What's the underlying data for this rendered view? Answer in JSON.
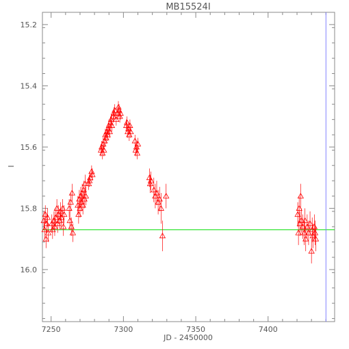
{
  "chart_data": {
    "type": "scatter",
    "title": "MB15524I",
    "xlabel": "JD - 2450000",
    "ylabel": "I",
    "xlim": [
      7244,
      7446
    ],
    "ylim": [
      16.17,
      15.16
    ],
    "y_inverted": true,
    "xticks": [
      7250,
      7300,
      7350,
      7400
    ],
    "yticks": [
      15.2,
      15.4,
      15.6,
      15.8,
      16.0
    ],
    "ytick_labels": [
      "15.2",
      "15.4",
      "15.6",
      "15.8",
      "16.0"
    ],
    "baseline": 15.87,
    "vertical_marker_x": 7440,
    "grid": false,
    "legend": "none",
    "colors": {
      "points": "#ff0000",
      "baseline": "#00dd00",
      "marker": "#8080ff",
      "axes": "#888888"
    },
    "series": [
      {
        "marker": "triangle",
        "points": [
          [
            7245.0,
            15.84,
            0.03
          ],
          [
            7245.5,
            15.87,
            0.03
          ],
          [
            7246.0,
            15.82,
            0.03
          ],
          [
            7246.5,
            15.9,
            0.03
          ],
          [
            7247.0,
            15.85,
            0.03
          ],
          [
            7247.5,
            15.83,
            0.03
          ],
          [
            7248.0,
            15.88,
            0.03
          ],
          [
            7250.5,
            15.85,
            0.03
          ],
          [
            7251.0,
            15.87,
            0.03
          ],
          [
            7252.0,
            15.84,
            0.03
          ],
          [
            7252.5,
            15.86,
            0.03
          ],
          [
            7253.0,
            15.83,
            0.03
          ],
          [
            7254.0,
            15.8,
            0.03
          ],
          [
            7254.5,
            15.85,
            0.03
          ],
          [
            7255.0,
            15.82,
            0.03
          ],
          [
            7256.0,
            15.84,
            0.03
          ],
          [
            7256.5,
            15.81,
            0.03
          ],
          [
            7257.0,
            15.83,
            0.03
          ],
          [
            7258.0,
            15.8,
            0.03
          ],
          [
            7258.5,
            15.86,
            0.03
          ],
          [
            7259.0,
            15.82,
            0.03
          ],
          [
            7262.5,
            15.8,
            0.03
          ],
          [
            7263.0,
            15.84,
            0.03
          ],
          [
            7263.5,
            15.78,
            0.03
          ],
          [
            7264.0,
            15.86,
            0.03
          ],
          [
            7264.5,
            15.75,
            0.03
          ],
          [
            7265.0,
            15.88,
            0.03
          ],
          [
            7268.5,
            15.79,
            0.03
          ],
          [
            7269.0,
            15.82,
            0.03
          ],
          [
            7269.5,
            15.77,
            0.03
          ],
          [
            7270.0,
            15.8,
            0.03
          ],
          [
            7270.5,
            15.76,
            0.03
          ],
          [
            7271.0,
            15.78,
            0.03
          ],
          [
            7271.5,
            15.75,
            0.03
          ],
          [
            7272.0,
            15.79,
            0.03
          ],
          [
            7272.5,
            15.74,
            0.03
          ],
          [
            7273.0,
            15.77,
            0.03
          ],
          [
            7273.5,
            15.72,
            0.03
          ],
          [
            7274.0,
            15.76,
            0.03
          ],
          [
            7276.0,
            15.72,
            0.02
          ],
          [
            7276.5,
            15.71,
            0.02
          ],
          [
            7277.0,
            15.7,
            0.02
          ],
          [
            7278.0,
            15.68,
            0.02
          ],
          [
            7278.5,
            15.69,
            0.02
          ],
          [
            7284.5,
            15.61,
            0.02
          ],
          [
            7285.0,
            15.6,
            0.02
          ],
          [
            7285.5,
            15.62,
            0.02
          ],
          [
            7286.0,
            15.59,
            0.02
          ],
          [
            7286.5,
            15.61,
            0.02
          ],
          [
            7287.0,
            15.58,
            0.02
          ],
          [
            7287.5,
            15.56,
            0.02
          ],
          [
            7288.0,
            15.57,
            0.02
          ],
          [
            7288.5,
            15.55,
            0.02
          ],
          [
            7289.0,
            15.56,
            0.02
          ],
          [
            7289.5,
            15.54,
            0.02
          ],
          [
            7290.0,
            15.53,
            0.02
          ],
          [
            7290.5,
            15.55,
            0.02
          ],
          [
            7291.0,
            15.52,
            0.02
          ],
          [
            7291.5,
            15.51,
            0.02
          ],
          [
            7292.0,
            15.53,
            0.02
          ],
          [
            7293.0,
            15.5,
            0.02
          ],
          [
            7293.5,
            15.49,
            0.02
          ],
          [
            7294.0,
            15.48,
            0.02
          ],
          [
            7295.0,
            15.51,
            0.02
          ],
          [
            7296.0,
            15.49,
            0.02
          ],
          [
            7296.5,
            15.47,
            0.02
          ],
          [
            7297.0,
            15.48,
            0.02
          ],
          [
            7297.5,
            15.5,
            0.02
          ],
          [
            7298.0,
            15.49,
            0.02
          ],
          [
            7302.0,
            15.53,
            0.02
          ],
          [
            7302.5,
            15.52,
            0.02
          ],
          [
            7303.0,
            15.55,
            0.02
          ],
          [
            7303.5,
            15.54,
            0.02
          ],
          [
            7304.0,
            15.56,
            0.02
          ],
          [
            7304.5,
            15.53,
            0.02
          ],
          [
            7305.0,
            15.55,
            0.02
          ],
          [
            7308.0,
            15.58,
            0.02
          ],
          [
            7308.5,
            15.61,
            0.02
          ],
          [
            7309.0,
            15.6,
            0.02
          ],
          [
            7309.5,
            15.62,
            0.02
          ],
          [
            7310.0,
            15.59,
            0.02
          ],
          [
            7318.0,
            15.7,
            0.03
          ],
          [
            7318.5,
            15.72,
            0.03
          ],
          [
            7319.0,
            15.71,
            0.03
          ],
          [
            7321.0,
            15.74,
            0.04
          ],
          [
            7322.0,
            15.76,
            0.04
          ],
          [
            7323.0,
            15.75,
            0.04
          ],
          [
            7324.0,
            15.78,
            0.04
          ],
          [
            7325.0,
            15.77,
            0.04
          ],
          [
            7326.0,
            15.8,
            0.05
          ],
          [
            7327.0,
            15.89,
            0.05
          ],
          [
            7329.5,
            15.76,
            0.04
          ],
          [
            7420.5,
            15.82,
            0.04
          ],
          [
            7421.0,
            15.88,
            0.04
          ],
          [
            7421.5,
            15.8,
            0.04
          ],
          [
            7422.0,
            15.85,
            0.04
          ],
          [
            7422.5,
            15.76,
            0.04
          ],
          [
            7423.0,
            15.84,
            0.04
          ],
          [
            7424.0,
            15.86,
            0.04
          ],
          [
            7425.0,
            15.88,
            0.04
          ],
          [
            7425.5,
            15.84,
            0.04
          ],
          [
            7426.0,
            15.9,
            0.04
          ],
          [
            7427.0,
            15.86,
            0.04
          ],
          [
            7428.0,
            15.88,
            0.04
          ],
          [
            7429.0,
            15.85,
            0.04
          ],
          [
            7430.0,
            15.94,
            0.04
          ],
          [
            7430.5,
            15.87,
            0.04
          ],
          [
            7431.0,
            15.89,
            0.04
          ],
          [
            7432.0,
            15.86,
            0.04
          ],
          [
            7432.5,
            15.88,
            0.04
          ],
          [
            7433.0,
            15.9,
            0.04
          ]
        ]
      }
    ]
  }
}
